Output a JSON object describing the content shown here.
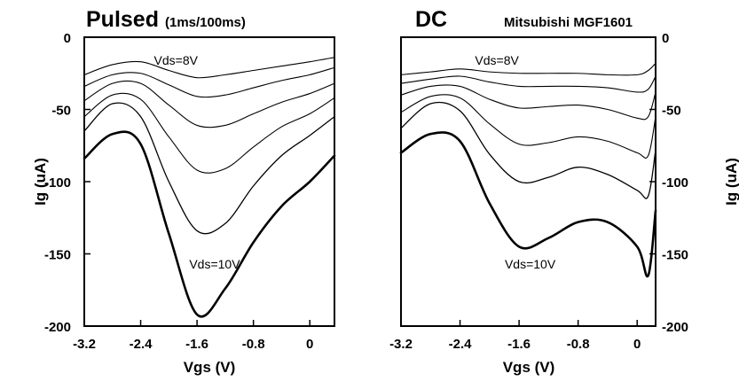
{
  "chart_data": [
    {
      "type": "line",
      "title": "Pulsed",
      "subtitle": "(1ms/100ms)",
      "xlabel": "Vgs (V)",
      "ylabel": "Ig (uA)",
      "xlim": [
        -3.2,
        0.35
      ],
      "ylim": [
        -200,
        0
      ],
      "x_ticks": [
        -3.2,
        -2.4,
        -1.6,
        -0.8,
        0
      ],
      "y_ticks": [
        0,
        -50,
        -100,
        -150,
        -200
      ],
      "x_tick_labels": [
        "-3.2",
        "-2.4",
        "-1.6",
        "-0.8",
        "0"
      ],
      "y_tick_labels": [
        "0",
        "-50",
        "-100",
        "-150",
        "-200"
      ],
      "ytick_side": "left",
      "annotations": [
        {
          "text": "Vds=8V",
          "x": -1.9,
          "y": -19
        },
        {
          "text": "Vds=10V",
          "x": -1.35,
          "y": -160
        }
      ],
      "series": [
        {
          "x": [
            -3.2,
            -2.8,
            -2.4,
            -2.0,
            -1.6,
            -1.2,
            -0.8,
            -0.4,
            0.0,
            0.35
          ],
          "y": [
            -26,
            -19,
            -17,
            -23,
            -28,
            -26,
            -23,
            -20,
            -17,
            -14
          ]
        },
        {
          "x": [
            -3.2,
            -2.8,
            -2.4,
            -2.0,
            -1.6,
            -1.2,
            -0.8,
            -0.4,
            0.0,
            0.35
          ],
          "y": [
            -34,
            -26,
            -25,
            -33,
            -41,
            -40,
            -35,
            -30,
            -26,
            -21
          ]
        },
        {
          "x": [
            -3.2,
            -2.8,
            -2.4,
            -2.0,
            -1.6,
            -1.2,
            -0.8,
            -0.4,
            0.0,
            0.35
          ],
          "y": [
            -44,
            -32,
            -32,
            -47,
            -61,
            -61,
            -53,
            -45,
            -39,
            -32
          ]
        },
        {
          "x": [
            -3.2,
            -2.8,
            -2.4,
            -2.0,
            -1.6,
            -1.2,
            -0.8,
            -0.4,
            0.0,
            0.35
          ],
          "y": [
            -55,
            -40,
            -43,
            -69,
            -92,
            -91,
            -76,
            -62,
            -53,
            -42
          ]
        },
        {
          "x": [
            -3.2,
            -2.8,
            -2.4,
            -2.0,
            -1.6,
            -1.2,
            -0.8,
            -0.4,
            0.0,
            0.35
          ],
          "y": [
            -65,
            -46,
            -55,
            -100,
            -134,
            -129,
            -103,
            -82,
            -68,
            -55
          ]
        },
        {
          "x": [
            -3.2,
            -2.8,
            -2.4,
            -2.0,
            -1.6,
            -1.2,
            -0.8,
            -0.4,
            0.0,
            0.35
          ],
          "y": [
            -84,
            -67,
            -74,
            -136,
            -192,
            -174,
            -142,
            -117,
            -100,
            -82
          ]
        }
      ]
    },
    {
      "type": "line",
      "title": "DC",
      "subtitle": "Mitsubishi MGF1601",
      "xlabel": "Vgs (V)",
      "ylabel": "Ig (uA)",
      "xlim": [
        -3.2,
        0.25
      ],
      "ylim": [
        -200,
        0
      ],
      "x_ticks": [
        -3.2,
        -2.4,
        -1.6,
        -0.8,
        0
      ],
      "y_ticks": [
        0,
        -50,
        -100,
        -150,
        -200
      ],
      "x_tick_labels": [
        "-3.2",
        "-2.4",
        "-1.6",
        "-0.8",
        "0"
      ],
      "y_tick_labels": [
        "0",
        "-50",
        "-100",
        "-150",
        "-200"
      ],
      "ytick_side": "right",
      "annotations": [
        {
          "text": "Vds=8V",
          "x": -1.9,
          "y": -19
        },
        {
          "text": "Vds=10V",
          "x": -1.45,
          "y": -160
        }
      ],
      "series": [
        {
          "x": [
            -3.2,
            -2.8,
            -2.4,
            -2.0,
            -1.6,
            -1.2,
            -0.8,
            -0.4,
            0.0,
            0.15,
            0.25
          ],
          "y": [
            -26,
            -24,
            -22,
            -24,
            -25,
            -25,
            -25,
            -26,
            -26,
            -23,
            -18
          ]
        },
        {
          "x": [
            -3.2,
            -2.8,
            -2.4,
            -2.0,
            -1.6,
            -1.2,
            -0.8,
            -0.4,
            0.0,
            0.15,
            0.25
          ],
          "y": [
            -32,
            -29,
            -27,
            -31,
            -34,
            -34,
            -34,
            -35,
            -38,
            -36,
            -27
          ]
        },
        {
          "x": [
            -3.2,
            -2.8,
            -2.4,
            -2.0,
            -1.6,
            -1.2,
            -0.8,
            -0.4,
            0.0,
            0.15,
            0.25
          ],
          "y": [
            -40,
            -34,
            -34,
            -43,
            -49,
            -48,
            -47,
            -50,
            -56,
            -55,
            -38
          ]
        },
        {
          "x": [
            -3.2,
            -2.8,
            -2.4,
            -2.0,
            -1.6,
            -1.2,
            -0.8,
            -0.4,
            0.0,
            0.15,
            0.25
          ],
          "y": [
            -52,
            -41,
            -42,
            -60,
            -74,
            -73,
            -69,
            -72,
            -80,
            -82,
            -55
          ]
        },
        {
          "x": [
            -3.2,
            -2.8,
            -2.4,
            -2.0,
            -1.6,
            -1.2,
            -0.8,
            -0.4,
            0.0,
            0.15,
            0.25
          ],
          "y": [
            -63,
            -46,
            -51,
            -81,
            -100,
            -97,
            -90,
            -95,
            -106,
            -110,
            -78
          ]
        },
        {
          "x": [
            -3.2,
            -2.8,
            -2.4,
            -2.0,
            -1.6,
            -1.2,
            -0.8,
            -0.4,
            0.0,
            0.15,
            0.25
          ],
          "y": [
            -80,
            -67,
            -72,
            -115,
            -145,
            -139,
            -128,
            -128,
            -145,
            -165,
            -120
          ]
        }
      ]
    }
  ]
}
